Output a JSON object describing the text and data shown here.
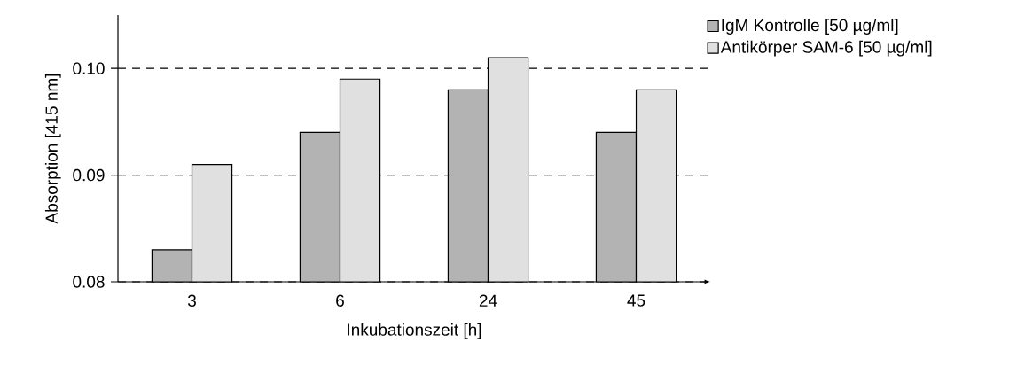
{
  "chart_data": {
    "type": "bar",
    "xlabel": "Inkubationszeit [h]",
    "ylabel": "Absorption [415 nm]",
    "categories": [
      "3",
      "6",
      "24",
      "45"
    ],
    "series": [
      {
        "name": "IgM Kontrolle [50 µg/ml]",
        "color": "#b3b3b3",
        "values": [
          0.083,
          0.094,
          0.098,
          0.094
        ]
      },
      {
        "name": "Antikörper SAM-6 [50 µg/ml]",
        "color": "#e0e0e0",
        "values": [
          0.091,
          0.099,
          0.101,
          0.098
        ]
      }
    ],
    "ylim": [
      0.08,
      0.105
    ],
    "yticks": [
      0.08,
      0.09,
      {
        "value": 0.1,
        "label": "0.10"
      }
    ],
    "grid": "y",
    "legend": "top right"
  }
}
